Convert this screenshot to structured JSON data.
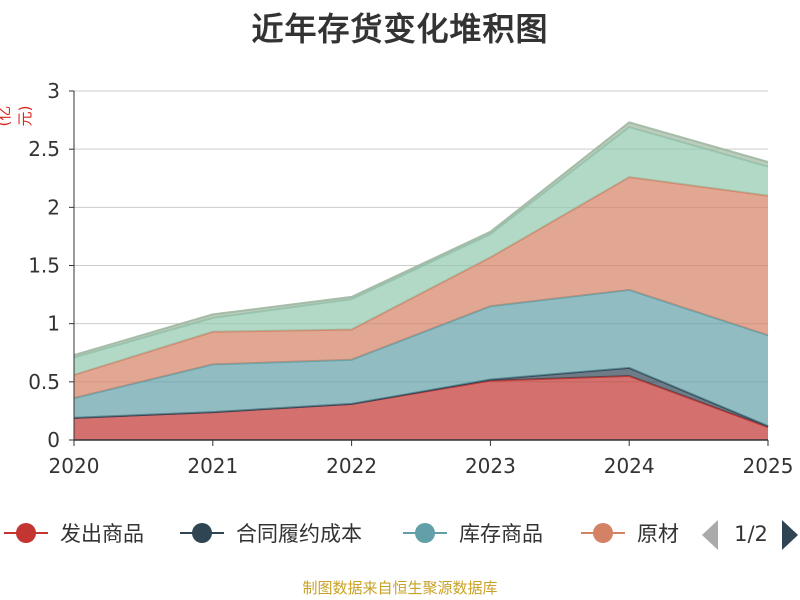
{
  "chart_data": {
    "type": "area",
    "stacked": true,
    "title": "近年存货变化堆积图",
    "unit": "(亿元)",
    "x": [
      "2020",
      "2021",
      "2022",
      "2023",
      "2024",
      "2025"
    ],
    "ylim": [
      0,
      3
    ],
    "yticks": [
      "0",
      "0.5",
      "1",
      "1.5",
      "2",
      "2.5",
      "3"
    ],
    "grid": true,
    "series": [
      {
        "name": "发出商品",
        "color": "#c23531",
        "values": [
          0.19,
          0.24,
          0.31,
          0.51,
          0.55,
          0.11
        ]
      },
      {
        "name": "合同履约成本",
        "color": "#2f4554",
        "values": [
          0.0,
          0.0,
          0.0,
          0.01,
          0.07,
          0.01
        ]
      },
      {
        "name": "库存商品",
        "color": "#61a0a8",
        "values": [
          0.17,
          0.41,
          0.38,
          0.63,
          0.67,
          0.78
        ]
      },
      {
        "name": "原材料",
        "color": "#d48265",
        "values": [
          0.2,
          0.28,
          0.26,
          0.42,
          0.97,
          1.2
        ]
      },
      {
        "name": "",
        "color": "#91c7ae",
        "values": [
          0.15,
          0.12,
          0.26,
          0.2,
          0.43,
          0.25
        ]
      },
      {
        "name": "",
        "color": "#9fb8a2",
        "values": [
          0.02,
          0.03,
          0.02,
          0.02,
          0.04,
          0.04
        ]
      }
    ],
    "legend": {
      "placement": "bottom",
      "visible_items": [
        "发出商品",
        "合同履约成本",
        "库存商品",
        "原材"
      ],
      "page": "1/2"
    }
  },
  "source_note": "制图数据来自恒生聚源数据库"
}
